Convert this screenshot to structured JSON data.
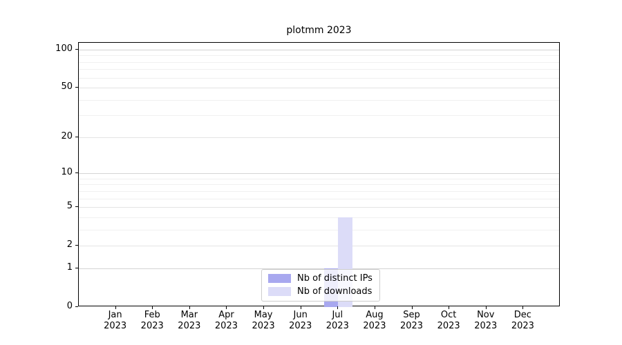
{
  "chart_data": {
    "type": "bar",
    "title": "plotmm 2023",
    "categories": [
      "Jan",
      "Feb",
      "Mar",
      "Apr",
      "May",
      "Jun",
      "Jul",
      "Aug",
      "Sep",
      "Oct",
      "Nov",
      "Dec"
    ],
    "category_year": "2023",
    "series": [
      {
        "name": "Nb of distinct IPs",
        "color": "#a8a8ef",
        "values": [
          0,
          0,
          0,
          0,
          0,
          0,
          1,
          0,
          0,
          0,
          0,
          0
        ]
      },
      {
        "name": "Nb of downloads",
        "color": "#dcdcf8",
        "values": [
          0,
          0,
          0,
          0,
          0,
          0,
          4,
          0,
          0,
          0,
          0,
          0
        ]
      }
    ],
    "yscale": "log1p",
    "ylim": [
      0,
      113
    ],
    "yticks": [
      0,
      1,
      2,
      5,
      10,
      20,
      50,
      100
    ],
    "yticks_decade": [
      1,
      10,
      100
    ],
    "yticks_minor": [
      3,
      4,
      6,
      7,
      8,
      9,
      30,
      40,
      60,
      70,
      80,
      90
    ],
    "grid": true,
    "legend_position": "lower center",
    "axis_color": "#000000",
    "background": "#ffffff"
  }
}
